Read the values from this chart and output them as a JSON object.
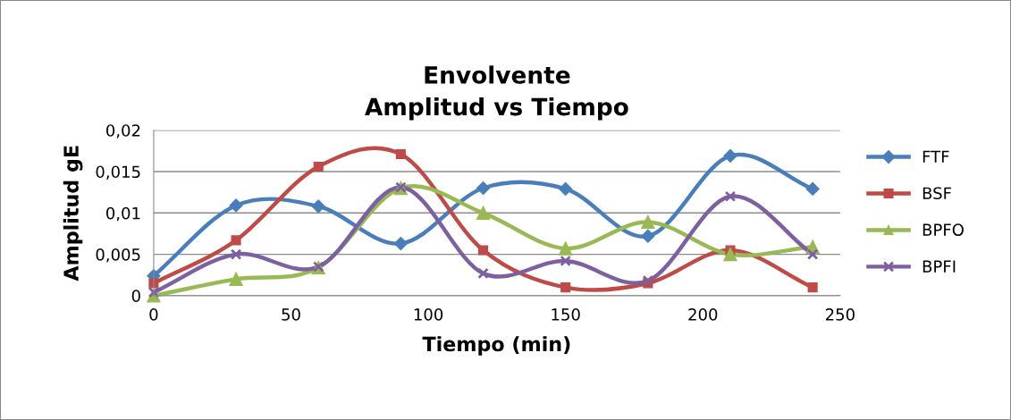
{
  "chart_data": {
    "type": "line",
    "title": "Envolvente\nAmplitud vs Tiempo",
    "xlabel": "Tiempo (min)",
    "ylabel": "Amplitud gE",
    "x": [
      0,
      30,
      60,
      90,
      120,
      150,
      180,
      210,
      240
    ],
    "series": [
      {
        "name": "FTF",
        "color": "#4a7ebb",
        "marker": "diamond",
        "values": [
          0.0024,
          0.0109,
          0.0108,
          0.0063,
          0.013,
          0.0129,
          0.0072,
          0.0169,
          0.0129
        ]
      },
      {
        "name": "BSF",
        "color": "#be4b48",
        "marker": "square",
        "values": [
          0.0015,
          0.0067,
          0.0156,
          0.0171,
          0.0055,
          0.001,
          0.0015,
          0.0055,
          0.001
        ]
      },
      {
        "name": "BPFO",
        "color": "#98b954",
        "marker": "triangle",
        "values": [
          0.0,
          0.002,
          0.0034,
          0.013,
          0.01,
          0.0057,
          0.0089,
          0.005,
          0.0059
        ]
      },
      {
        "name": "BPFI",
        "color": "#7d60a0",
        "marker": "cross",
        "values": [
          0.0004,
          0.005,
          0.0035,
          0.0131,
          0.0027,
          0.0042,
          0.0018,
          0.012,
          0.005
        ]
      }
    ],
    "xlim": [
      0,
      250
    ],
    "xticks": [
      0,
      50,
      100,
      150,
      200,
      250
    ],
    "ylim": [
      0,
      0.02
    ],
    "yticks": [
      {
        "value": 0,
        "label": "0"
      },
      {
        "value": 0.005,
        "label": "0,005"
      },
      {
        "value": 0.01,
        "label": "0,01"
      },
      {
        "value": 0.015,
        "label": "0,015"
      },
      {
        "value": 0.02,
        "label": "0,02"
      }
    ],
    "grid": "y",
    "legend": "right",
    "line_style": "solid"
  }
}
